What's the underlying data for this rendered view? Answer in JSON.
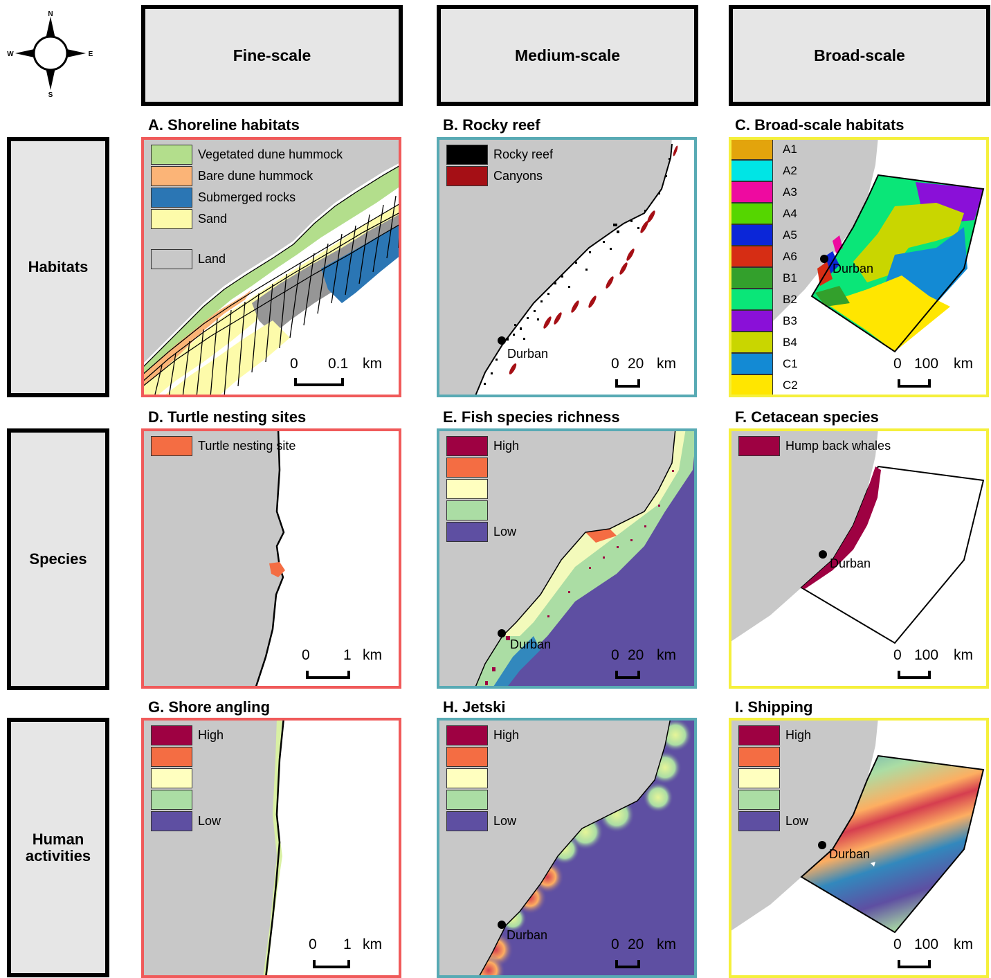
{
  "compass": {
    "n": "N",
    "s": "S",
    "e": "E",
    "w": "W"
  },
  "columns": [
    "Fine-scale",
    "Medium-scale",
    "Broad-scale"
  ],
  "rows": [
    "Habitats",
    "Species",
    "Human\nactivities"
  ],
  "panels": {
    "A": {
      "title": "A. Shoreline habitats",
      "legend": [
        {
          "label": "Vegetated dune hummock",
          "color": "#b3de8c"
        },
        {
          "label": "Bare dune hummock",
          "color": "#fbb477"
        },
        {
          "label": "Submerged rocks",
          "color": "#2b76b4"
        },
        {
          "label": "Sand",
          "color": "#fdfbaa"
        },
        {
          "label": "Land",
          "color": "#c8c8c8"
        }
      ],
      "scale": {
        "left": "0",
        "right": "0.1",
        "unit": "km"
      }
    },
    "B": {
      "title": "B. Rocky reef",
      "legend": [
        {
          "label": "Rocky reef",
          "color": "#000000"
        },
        {
          "label": "Canyons",
          "color": "#a50f15"
        }
      ],
      "city": "Durban",
      "scale": {
        "left": "0",
        "right": "20",
        "unit": "km"
      }
    },
    "C": {
      "title": "C. Broad-scale habitats",
      "legend": [
        {
          "label": "A1",
          "color": "#e3a40c"
        },
        {
          "label": "A2",
          "color": "#00e5e5"
        },
        {
          "label": "A3",
          "color": "#ee0aa0"
        },
        {
          "label": "A4",
          "color": "#55d600"
        },
        {
          "label": "A5",
          "color": "#0b26d8"
        },
        {
          "label": "A6",
          "color": "#d62d14"
        },
        {
          "label": "B1",
          "color": "#33a02c"
        },
        {
          "label": "B2",
          "color": "#0ae678"
        },
        {
          "label": "B3",
          "color": "#8a10d8"
        },
        {
          "label": "B4",
          "color": "#c9d600"
        },
        {
          "label": "C1",
          "color": "#138ad4"
        },
        {
          "label": "C2",
          "color": "#ffe600"
        }
      ],
      "city": "Durban",
      "scale": {
        "left": "0",
        "right": "100",
        "unit": "km"
      }
    },
    "D": {
      "title": "D. Turtle nesting sites",
      "legend": [
        {
          "label": "Turtle nesting site",
          "color": "#f46d43"
        }
      ],
      "scale": {
        "left": "0",
        "right": "1",
        "unit": "km"
      }
    },
    "E": {
      "title": "E. Fish species richness",
      "legend": [
        {
          "label": "High",
          "color": "#9e0142"
        },
        {
          "label": "",
          "color": "#f46d43"
        },
        {
          "label": "",
          "color": "#ffffbf"
        },
        {
          "label": "",
          "color": "#abdda4"
        },
        {
          "label": "Low",
          "color": "#5e4fa2"
        }
      ],
      "city": "Durban",
      "scale": {
        "left": "0",
        "right": "20",
        "unit": "km"
      }
    },
    "F": {
      "title": "F. Cetacean species",
      "legend": [
        {
          "label": "Hump back whales",
          "color": "#9e0142"
        }
      ],
      "city": "Durban",
      "scale": {
        "left": "0",
        "right": "100",
        "unit": "km"
      }
    },
    "G": {
      "title": "G. Shore angling",
      "legend": [
        {
          "label": "High",
          "color": "#9e0142"
        },
        {
          "label": "",
          "color": "#f46d43"
        },
        {
          "label": "",
          "color": "#ffffbf"
        },
        {
          "label": "",
          "color": "#abdda4"
        },
        {
          "label": "Low",
          "color": "#5e4fa2"
        }
      ],
      "scale": {
        "left": "0",
        "right": "1",
        "unit": "km"
      }
    },
    "H": {
      "title": "H. Jetski",
      "legend": [
        {
          "label": "High",
          "color": "#9e0142"
        },
        {
          "label": "",
          "color": "#f46d43"
        },
        {
          "label": "",
          "color": "#ffffbf"
        },
        {
          "label": "",
          "color": "#abdda4"
        },
        {
          "label": "Low",
          "color": "#5e4fa2"
        }
      ],
      "city": "Durban",
      "scale": {
        "left": "0",
        "right": "20",
        "unit": "km"
      }
    },
    "I": {
      "title": "I. Shipping",
      "legend": [
        {
          "label": "High",
          "color": "#9e0142"
        },
        {
          "label": "",
          "color": "#f46d43"
        },
        {
          "label": "",
          "color": "#ffffbf"
        },
        {
          "label": "",
          "color": "#abdda4"
        },
        {
          "label": "Low",
          "color": "#5e4fa2"
        }
      ],
      "city": "Durban",
      "scale": {
        "left": "0",
        "right": "100",
        "unit": "km"
      }
    }
  },
  "colors": {
    "land": "#c8c8c8",
    "fine": "#f05a5a",
    "medium": "#58aab4",
    "broad": "#f5f03c"
  }
}
